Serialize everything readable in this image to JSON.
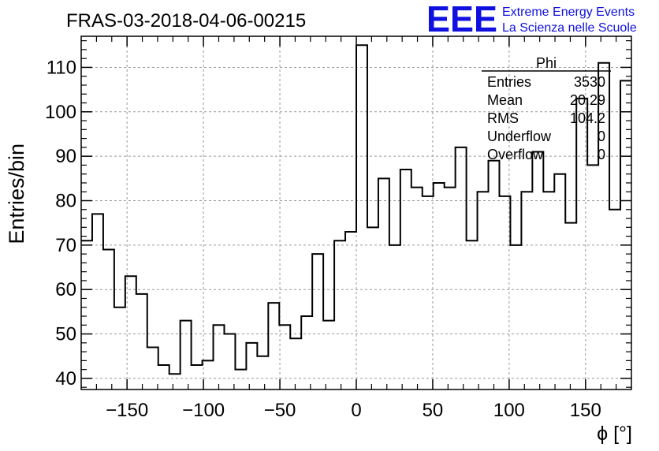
{
  "header": {
    "run_title": "FRAS-03-2018-04-06-00215",
    "logo_text": "EEE",
    "logo_line1": "Extreme Energy Events",
    "logo_line2": "La Scienza nelle Scuole"
  },
  "colors": {
    "logo": "#1010e0",
    "histogram_line": "#000000",
    "grid": "#999999"
  },
  "stats_box": {
    "title": "Phi",
    "rows": [
      {
        "label": "Entries",
        "value": "3530"
      },
      {
        "label": "Mean",
        "value": "20.29"
      },
      {
        "label": "RMS",
        "value": "104.2"
      },
      {
        "label": "Underflow",
        "value": "0"
      },
      {
        "label": "Overflow",
        "value": "0"
      }
    ]
  },
  "chart_data": {
    "type": "histogram",
    "title": "FRAS-03-2018-04-06-00215",
    "xlabel": "ϕ [°]",
    "ylabel": "Entries/bin",
    "xlim": [
      -180,
      180
    ],
    "ylim": [
      37.5,
      117
    ],
    "bin_width": 7.2,
    "bin_edges_start": -180,
    "values": [
      71,
      77,
      69,
      56,
      63,
      59,
      47,
      43,
      41,
      53,
      43,
      44,
      52,
      50,
      42,
      48,
      45,
      57,
      52,
      49,
      54,
      68,
      53,
      71,
      73,
      115,
      74,
      85,
      70,
      87,
      83,
      81,
      84,
      83,
      92,
      71,
      82,
      89,
      81,
      70,
      82,
      91,
      82,
      86,
      75,
      103,
      88,
      111,
      78,
      107
    ],
    "x_ticks": [
      -150,
      -100,
      -50,
      0,
      50,
      100,
      150
    ],
    "x_tick_labels": [
      "−150",
      "−100",
      "−50",
      "0",
      "50",
      "100",
      "150"
    ],
    "y_ticks": [
      40,
      50,
      60,
      70,
      80,
      90,
      100,
      110
    ],
    "y_tick_labels": [
      "40",
      "50",
      "60",
      "70",
      "80",
      "90",
      "100",
      "110"
    ],
    "grid": true,
    "legend_position": "top-right"
  }
}
